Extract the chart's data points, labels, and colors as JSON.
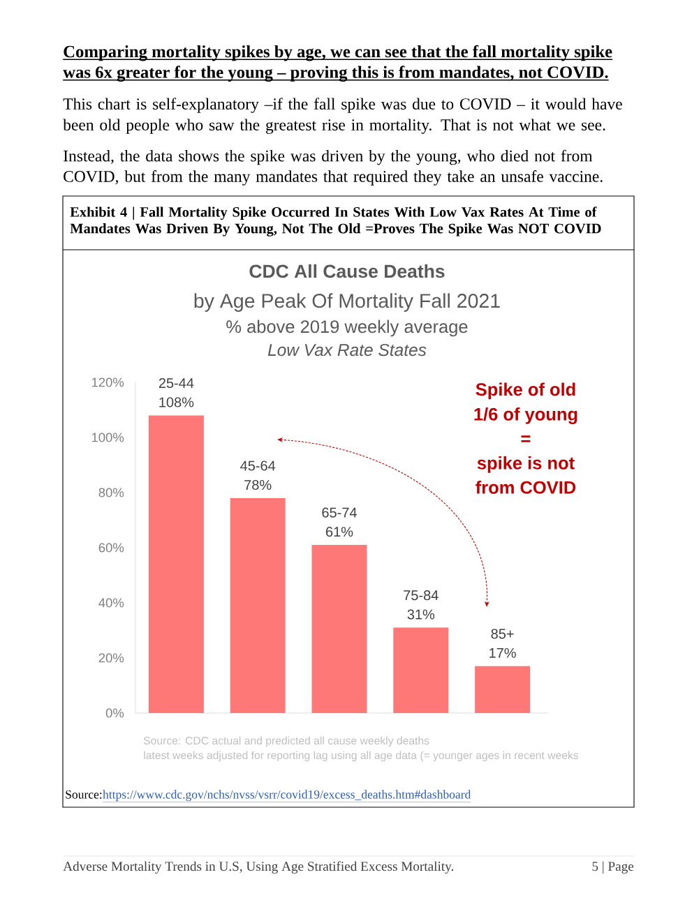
{
  "chart_data": {
    "type": "bar",
    "title": "CDC All Cause Deaths",
    "subtitle": "by Age Peak Of Mortality Fall 2021",
    "categories": [
      "25-44",
      "45-64",
      "65-74",
      "75-84",
      "85+"
    ],
    "values": [
      108,
      78,
      61,
      31,
      17
    ],
    "value_labels": [
      "108%",
      "78%",
      "61%",
      "31%",
      "17%"
    ],
    "color": "#ff7878",
    "ylim": [
      0,
      120
    ],
    "yticks": [
      {
        "value": 0,
        "label": "0%"
      },
      {
        "value": 20,
        "label": "20%"
      },
      {
        "value": 40,
        "label": "40%"
      },
      {
        "value": 60,
        "label": "60%"
      },
      {
        "value": 80,
        "label": "80%"
      },
      {
        "value": 100,
        "label": "100%"
      },
      {
        "value": 120,
        "label": "120%"
      }
    ],
    "annotations": [
      "Comparing mortality spikes by age, we can see that the fall mortality spike was 6x greater for the young – proving this is from mandates, not COVID.",
      "This chart is self-explanatory –if the fall spike was due to COVID – it would have been old people who saw the greatest rise in mortality. That is not what we see.",
      "Instead, the data shows the spike was driven by the young, who died not from COVID, but from the many mandates that required they take an unsafe vaccine.",
      "Exhibit 4 | Fall Mortality Spike Occurred In States With Low Vax Rates At Time of Mandates Was Driven By Young, Not The Old =Proves The Spike Was NOT COVID",
      "% above 2019 weekly average",
      "Low Vax Rate States",
      "Spike of old",
      "1/6 of young",
      "=",
      "spike is not",
      "from COVID",
      "Source: CDC actual and predicted all cause weekly deaths",
      "latest weeks adjusted for reporting lag using all age data (= younger ages in recent weeks",
      "Source:",
      "https://www.cdc.gov/nchs/nvss/vsrr/covid19/excess_deaths.htm#dashboard",
      "Adverse Mortality Trends in U.S, Using Age Stratified Excess Mortality.",
      "5 | Page"
    ]
  }
}
